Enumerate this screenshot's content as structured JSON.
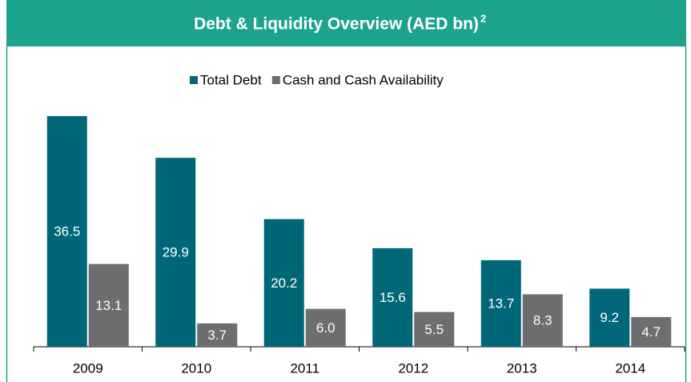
{
  "chart_data": {
    "type": "bar",
    "title": "Debt & Liquidity Overview (AED bn)",
    "title_superscript": "2",
    "categories": [
      "2009",
      "2010",
      "2011",
      "2012",
      "2013",
      "2014"
    ],
    "series": [
      {
        "name": "Total Debt",
        "color": "#006778",
        "values": [
          36.5,
          29.9,
          20.2,
          15.6,
          13.7,
          9.2
        ],
        "value_labels": [
          "36.5",
          "29.9",
          "20.2",
          "15.6",
          "13.7",
          "9.2"
        ]
      },
      {
        "name": "Cash and Cash Availability",
        "color": "#6d6e70",
        "values": [
          13.1,
          3.7,
          6.0,
          5.5,
          8.3,
          4.7
        ],
        "value_labels": [
          "13.1",
          "3.7",
          "6.0",
          "5.5",
          "8.3",
          "4.7"
        ]
      }
    ],
    "ylim": [
      0,
      40
    ],
    "legend": "top"
  }
}
